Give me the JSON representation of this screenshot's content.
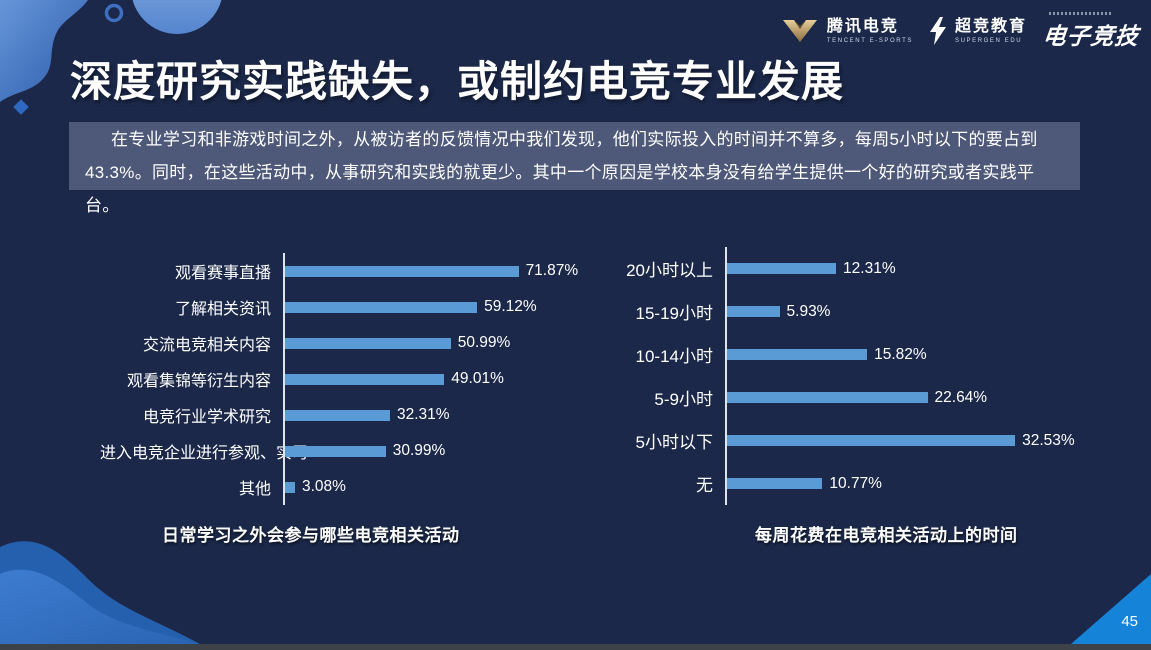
{
  "slide": {
    "title": "深度研究实践缺失，或制约电竞专业发展",
    "paragraph": "在专业学习和非游戏时间之外，从被访者的反馈情况中我们发现，他们实际投入的时间并不算多，每周5小时以下的要占到43.3%。同时，在这些活动中，从事研究和实践的就更少。其中一个原因是学校本身没有给学生提供一个好的研究或者实践平台。",
    "page_number": "45"
  },
  "header_logos": {
    "tencent_esports": {
      "name": "腾讯电竞",
      "subtitle": "TENCENT E-SPORTS"
    },
    "supergen_edu": {
      "name": "超竞教育",
      "subtitle": "SUPERGEN EDU"
    },
    "esports_wordmark": {
      "name": "电子竞技"
    }
  },
  "colors": {
    "background": "#1b2849",
    "panel": "#4e5878",
    "bar": "#5b9bd5",
    "axis": "#dfe3ea",
    "page_triangle": "#1583d8",
    "wave_back": "#2460ae",
    "wave_front": "#3e7cd0",
    "blob_top": "#5c8ed6"
  },
  "chart_data": [
    {
      "type": "bar",
      "orientation": "horizontal",
      "title": "日常学习之外会参与哪些电竞相关活动",
      "categories": [
        "观看赛事直播",
        "了解相关资讯",
        "交流电竞相关内容",
        "观看集锦等衍生内容",
        "电竞行业学术研究",
        "进入电竞企业进行参观、实习",
        "其他"
      ],
      "values": [
        71.87,
        59.12,
        50.99,
        49.01,
        32.31,
        30.99,
        3.08
      ],
      "value_suffix": "%",
      "xlim": [
        0,
        80
      ],
      "grid": false,
      "legend": "none",
      "bar_color": "#5b9bd5"
    },
    {
      "type": "bar",
      "orientation": "horizontal",
      "title": "每周花费在电竞相关活动上的时间",
      "categories": [
        "20小时以上",
        "15-19小时",
        "10-14小时",
        "5-9小时",
        "5小时以下",
        "无"
      ],
      "values": [
        12.31,
        5.93,
        15.82,
        22.64,
        32.53,
        10.77
      ],
      "value_suffix": "%",
      "xlim": [
        0,
        35
      ],
      "grid": false,
      "legend": "none",
      "bar_color": "#5b9bd5"
    }
  ]
}
